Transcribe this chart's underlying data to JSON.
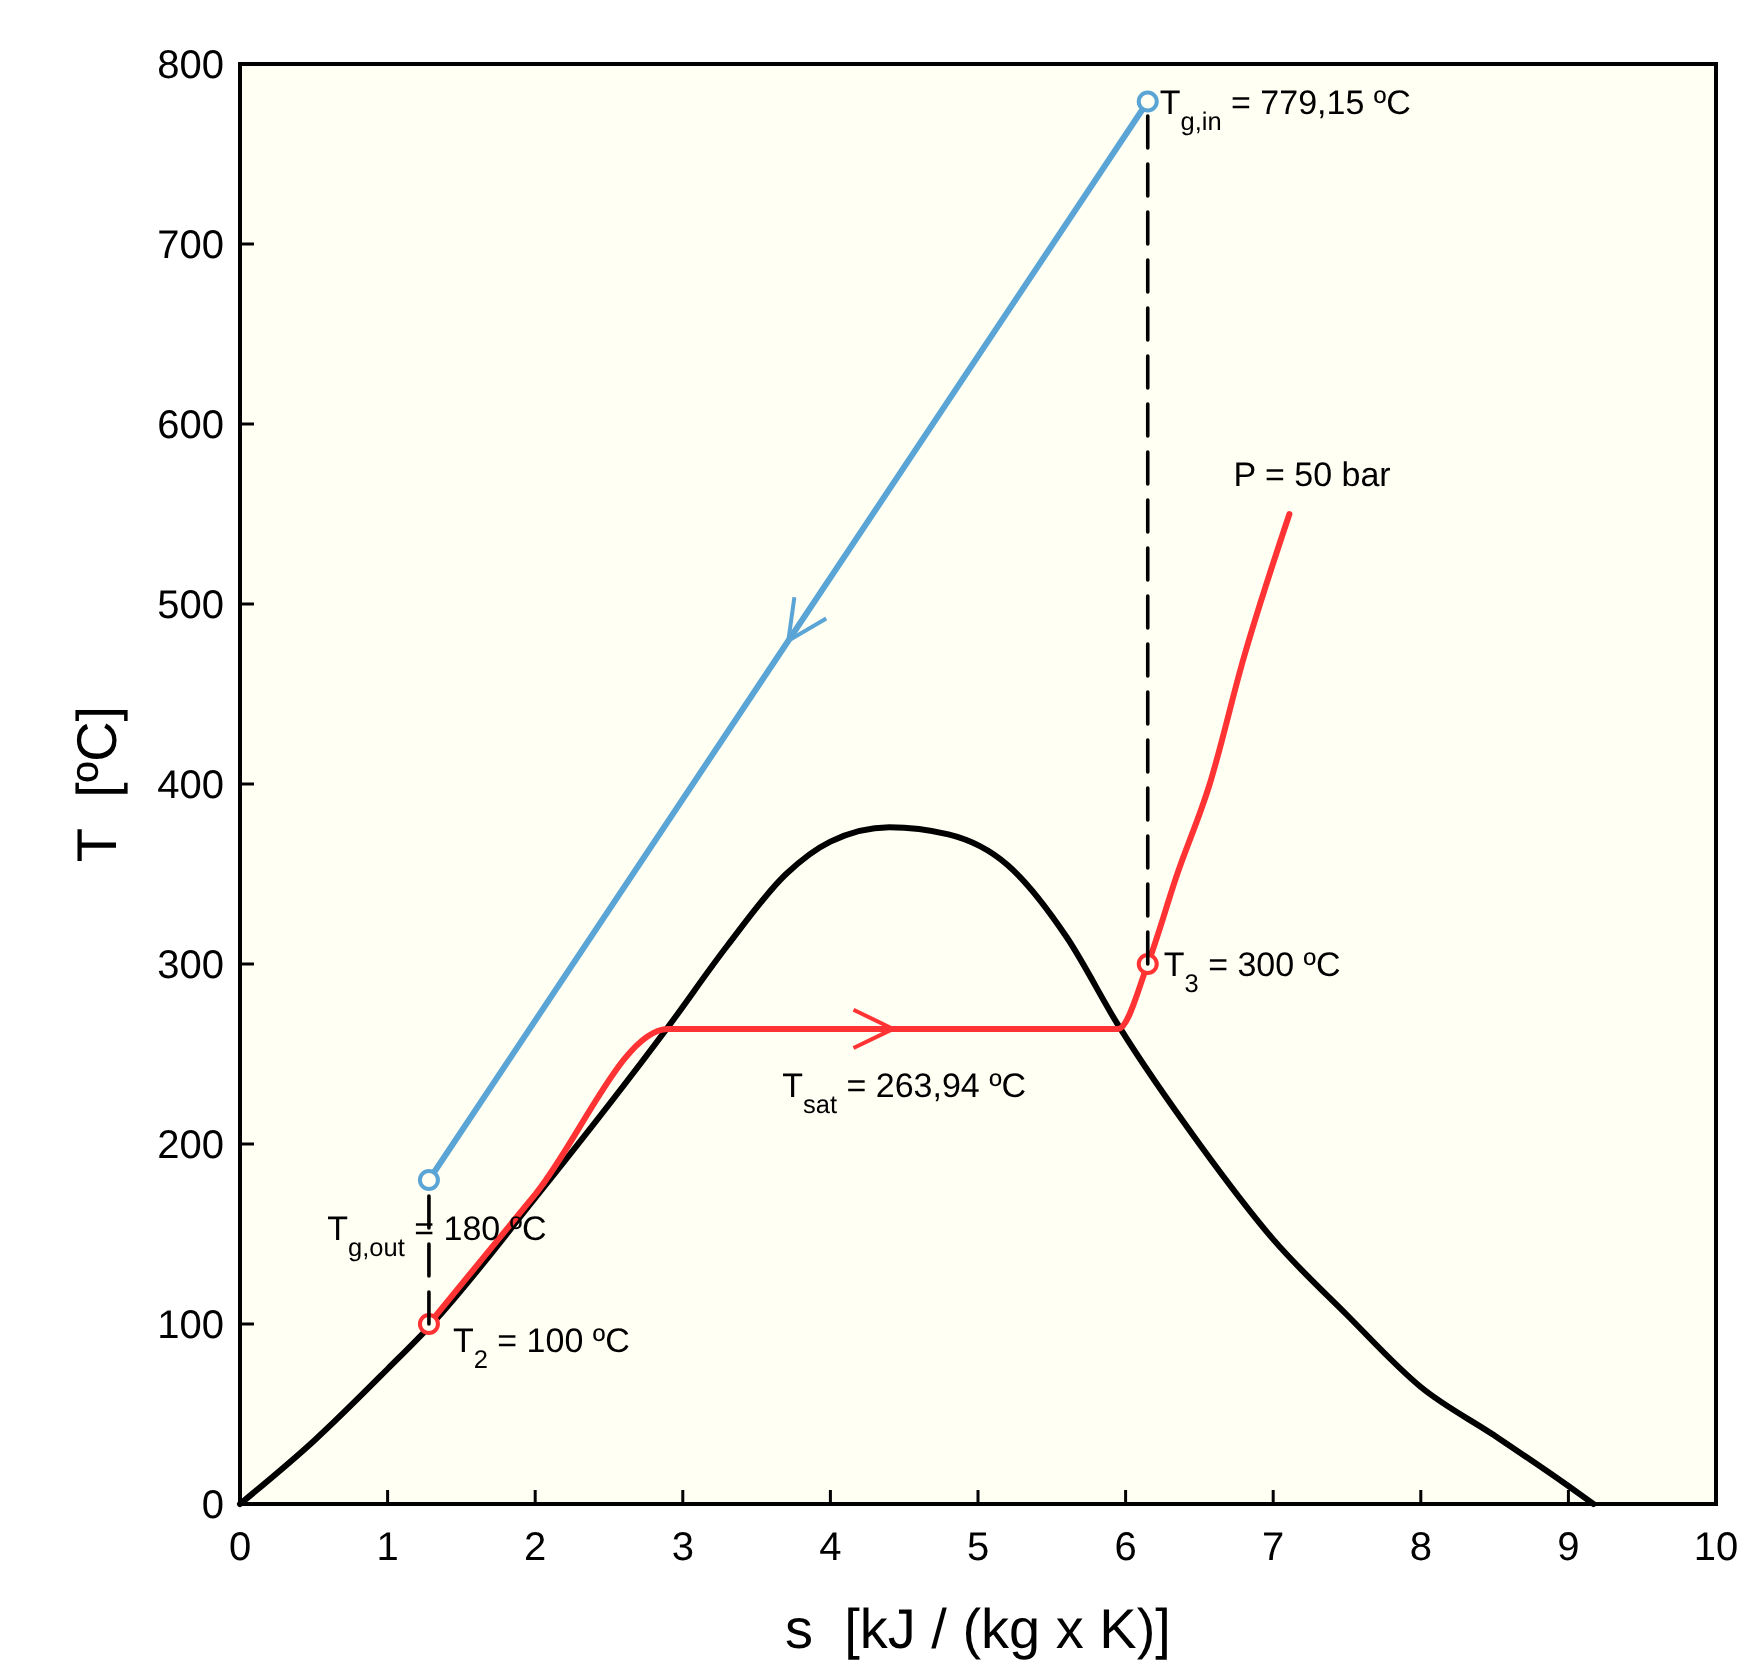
{
  "chart_data": {
    "type": "line",
    "xlabel": "s  [kJ / (kg x K)]",
    "ylabel": "T  [ºC]",
    "xlim": [
      0,
      10
    ],
    "ylim": [
      0,
      800
    ],
    "xticks": [
      0,
      1,
      2,
      3,
      4,
      5,
      6,
      7,
      8,
      9,
      10
    ],
    "yticks": [
      0,
      100,
      200,
      300,
      400,
      500,
      600,
      700,
      800
    ],
    "grid": false,
    "marker": "none",
    "line_style": "solid",
    "series": [
      {
        "color": "#000000",
        "x": [
          0,
          0.5,
          1,
          1.3,
          2,
          2.9,
          3.3,
          3.7,
          4.0,
          4.4,
          4.8,
          5.2,
          5.6,
          5.95,
          6.5,
          7,
          7.5,
          8,
          8.5,
          9,
          9.17
        ],
        "values": [
          0,
          35,
          75,
          100,
          170,
          265,
          310,
          350,
          368,
          376,
          372,
          355,
          315,
          266,
          200,
          147,
          105,
          65,
          38,
          10,
          0
        ]
      },
      {
        "color": "#5aa5d5",
        "marker": "circle",
        "x": [
          6.15,
          1.28
        ],
        "values": [
          779.15,
          180
        ]
      },
      {
        "color": "#ff3333",
        "x": [
          1.28,
          2.0,
          2.9,
          5.95,
          6.15,
          6.35,
          6.57,
          6.8,
          7.11
        ],
        "values": [
          100,
          172,
          263.94,
          263.94,
          300,
          350,
          400,
          470,
          550
        ]
      },
      {
        "type": "scatter",
        "color": "#ff3333",
        "marker": "circle",
        "x": [
          1.28,
          6.15
        ],
        "values": [
          100,
          300
        ]
      },
      {
        "color": "#000000",
        "line_style": "dashed",
        "x": [
          6.15,
          6.15
        ],
        "values": [
          300,
          779.15
        ]
      },
      {
        "color": "#000000",
        "line_style": "dashed",
        "x": [
          1.28,
          1.28
        ],
        "values": [
          100,
          180
        ]
      }
    ],
    "annotations": [
      {
        "text": "T$_{g,in}$ = 779,15 ºC",
        "x": 6.15,
        "y": 779.15
      },
      {
        "text": "P = 50 bar",
        "x": 7.11,
        "y": 550
      },
      {
        "text": "T$_{3}$ = 300 ºC",
        "x": 6.15,
        "y": 300
      },
      {
        "text": "T$_{sat}$ = 263,94 ºC",
        "x": 4.5,
        "y": 263.94
      },
      {
        "text": "T$_{g,out}$ = 180 ºC",
        "x": 1.28,
        "y": 180
      },
      {
        "text": "T$_{2}$ = 100 ºC",
        "x": 1.28,
        "y": 100
      }
    ]
  }
}
